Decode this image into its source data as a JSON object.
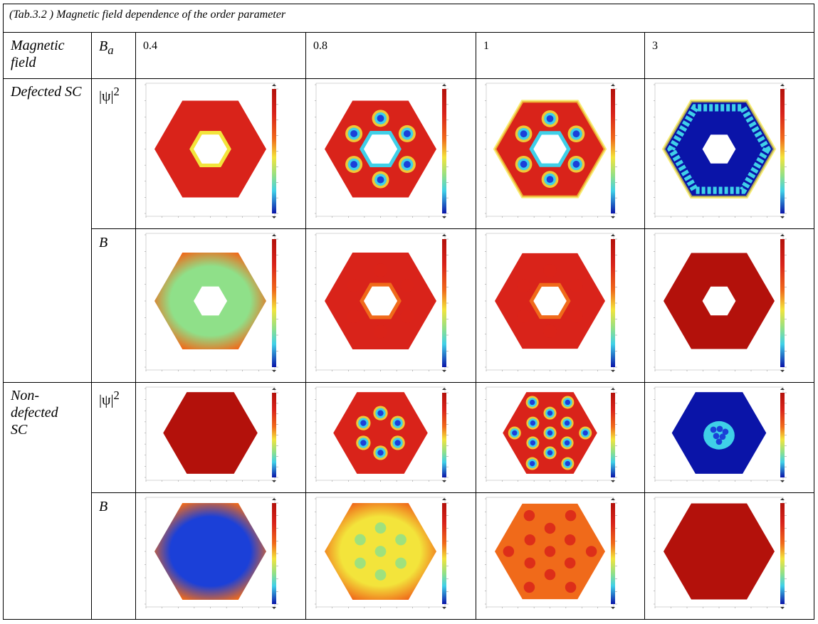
{
  "caption": "(Tab.3.2 ) Magnetic field dependence of the order parameter",
  "header": {
    "row_label": "Magnetic field",
    "field_symbol": "B",
    "field_subscript": "a",
    "fields": [
      "0.4",
      "0.8",
      "1",
      "3"
    ]
  },
  "groups": [
    {
      "label": "Defected SC",
      "rows": [
        {
          "quantity": "|ψ|",
          "superscript": "2"
        },
        {
          "quantity": "B",
          "superscript": ""
        }
      ]
    },
    {
      "label": "Non-defected SC",
      "rows": [
        {
          "quantity": "|ψ|",
          "superscript": "2"
        },
        {
          "quantity": "B",
          "superscript": ""
        }
      ]
    }
  ],
  "colors": {
    "high": "#b3110b",
    "red": "#d9231a",
    "orange": "#f06a1a",
    "yellow": "#f3e43b",
    "green": "#8fe089",
    "cyan": "#3fd0e8",
    "blue": "#1b40d8",
    "deep_blue": "#0a14a8"
  }
}
